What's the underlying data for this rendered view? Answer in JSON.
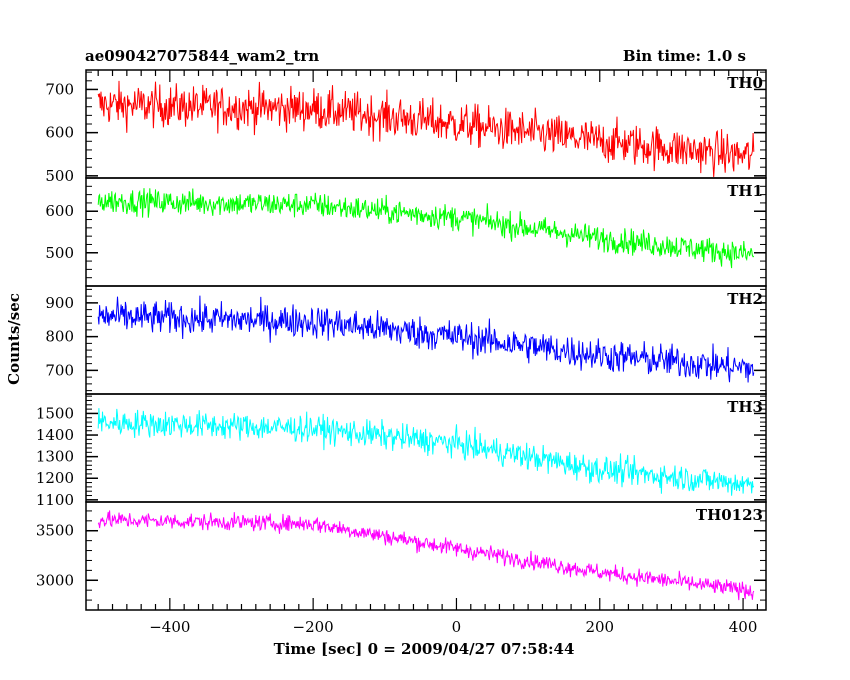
{
  "header": {
    "title": "ae090427075844_wam2_trn",
    "bin_time": "Bin time: 1.0 s"
  },
  "chart_data": {
    "type": "line",
    "xlabel": "Time [sec] 0 = 2009/04/27 07:58:44",
    "ylabel": "Counts/sec",
    "xlim": [
      -517,
      432
    ],
    "x_ticks": [
      -400,
      -200,
      0,
      200,
      400
    ],
    "x_range": [
      -500,
      415
    ],
    "bin": 1.0,
    "panels": [
      {
        "name": "TH0",
        "color": "#ff0000",
        "ylim": [
          495,
          745
        ],
        "y_ticks": [
          500,
          600,
          700
        ],
        "trend": [
          [
            -500,
            665
          ],
          [
            -200,
            655
          ],
          [
            0,
            620
          ],
          [
            200,
            580
          ],
          [
            415,
            545
          ]
        ],
        "noise": 35
      },
      {
        "name": "TH1",
        "color": "#00ff00",
        "ylim": [
          420,
          680
        ],
        "y_ticks": [
          500,
          600
        ],
        "trend": [
          [
            -500,
            625
          ],
          [
            -200,
            615
          ],
          [
            0,
            585
          ],
          [
            200,
            535
          ],
          [
            415,
            495
          ]
        ],
        "noise": 22
      },
      {
        "name": "TH2",
        "color": "#0000ff",
        "ylim": [
          630,
          950
        ],
        "y_ticks": [
          700,
          800,
          900
        ],
        "trend": [
          [
            -500,
            860
          ],
          [
            -200,
            845
          ],
          [
            0,
            800
          ],
          [
            200,
            745
          ],
          [
            415,
            705
          ]
        ],
        "noise": 35
      },
      {
        "name": "TH3",
        "color": "#00ffff",
        "ylim": [
          1090,
          1590
        ],
        "y_ticks": [
          1100,
          1200,
          1300,
          1400,
          1500
        ],
        "trend": [
          [
            -500,
            1460
          ],
          [
            -200,
            1430
          ],
          [
            0,
            1360
          ],
          [
            200,
            1240
          ],
          [
            415,
            1170
          ]
        ],
        "noise": 45
      },
      {
        "name": "TH0123",
        "color": "#ff00ff",
        "ylim": [
          2700,
          3790
        ],
        "y_ticks": [
          3000,
          3500
        ],
        "trend": [
          [
            -500,
            3610
          ],
          [
            -200,
            3570
          ],
          [
            0,
            3320
          ],
          [
            200,
            3080
          ],
          [
            415,
            2890
          ]
        ],
        "noise": 60
      }
    ]
  }
}
